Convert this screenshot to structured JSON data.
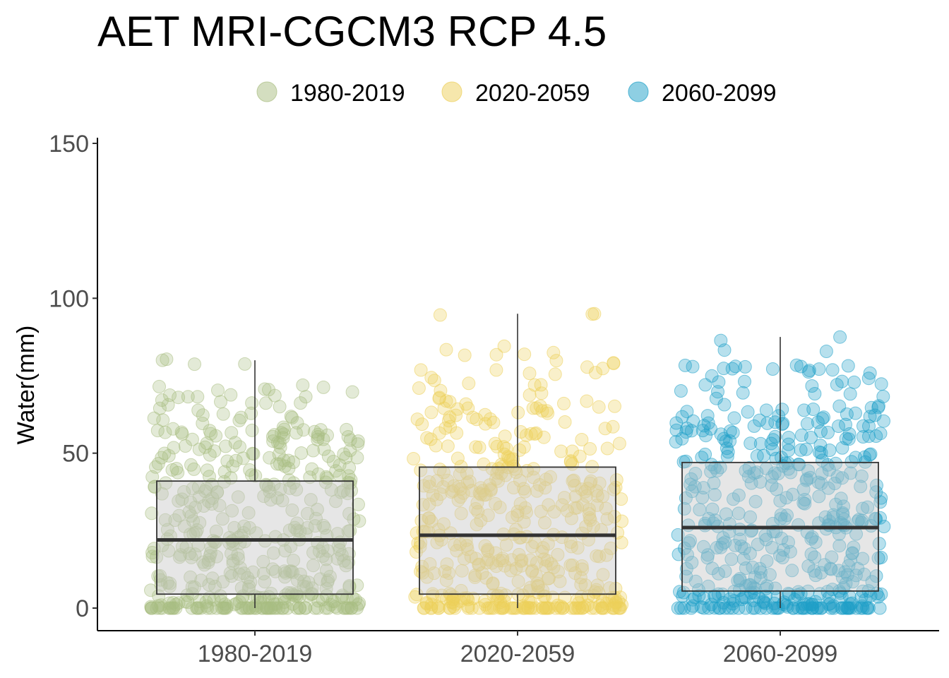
{
  "chart_data": {
    "type": "box",
    "title": "AET MRI-CGCM3 RCP 4.5",
    "xlabel": "",
    "ylabel": "Water(mm)",
    "ylim": [
      -7,
      152
    ],
    "yticks": [
      0,
      50,
      100,
      150
    ],
    "categories": [
      "1980-2019",
      "2020-2059",
      "2060-2099"
    ],
    "legend": {
      "placement": "top",
      "entries": [
        "1980-2019",
        "2020-2059",
        "2060-2099"
      ]
    },
    "grid": false,
    "points_per_group": 480,
    "series": [
      {
        "name": "1980-2019",
        "color": "#A9BE82",
        "q1": 4.5,
        "median": 22,
        "q3": 41,
        "whisker_low": 0,
        "whisker_high": 80,
        "max_point": 80
      },
      {
        "name": "2020-2059",
        "color": "#EDCF5A",
        "q1": 4.5,
        "median": 23.5,
        "q3": 45.5,
        "whisker_low": 0,
        "whisker_high": 95,
        "max_point": 95
      },
      {
        "name": "2060-2099",
        "color": "#1EA0C8",
        "q1": 5.5,
        "median": 26,
        "q3": 47,
        "whisker_low": 0,
        "whisker_high": 87.5,
        "max_point": 87.5
      }
    ]
  }
}
